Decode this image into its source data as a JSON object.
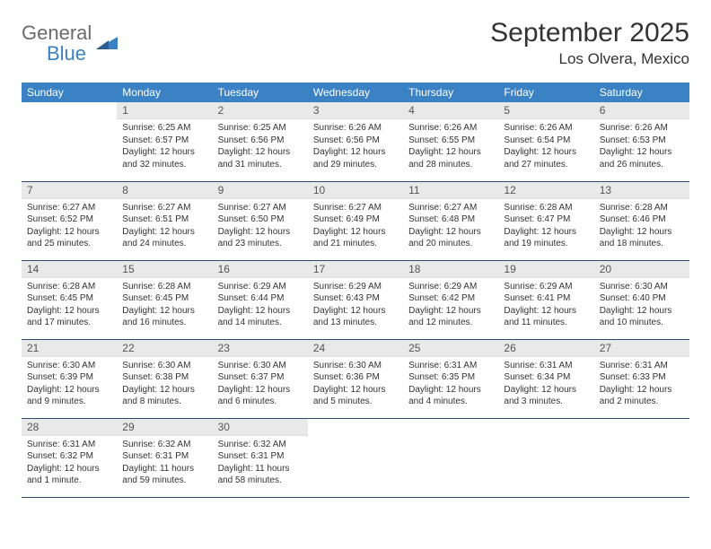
{
  "logo": {
    "text1": "General",
    "text2": "Blue"
  },
  "title": "September 2025",
  "location": "Los Olvera, Mexico",
  "colors": {
    "header_bg": "#3b82c4",
    "header_text": "#ffffff",
    "daynum_bg": "#e9e9e9",
    "row_border": "#2a4d6e",
    "logo_gray": "#6b6b6b",
    "logo_blue": "#3b82c4"
  },
  "weekdays": [
    "Sunday",
    "Monday",
    "Tuesday",
    "Wednesday",
    "Thursday",
    "Friday",
    "Saturday"
  ],
  "weeks": [
    [
      null,
      {
        "n": "1",
        "sr": "6:25 AM",
        "ss": "6:57 PM",
        "dl": "12 hours and 32 minutes."
      },
      {
        "n": "2",
        "sr": "6:25 AM",
        "ss": "6:56 PM",
        "dl": "12 hours and 31 minutes."
      },
      {
        "n": "3",
        "sr": "6:26 AM",
        "ss": "6:56 PM",
        "dl": "12 hours and 29 minutes."
      },
      {
        "n": "4",
        "sr": "6:26 AM",
        "ss": "6:55 PM",
        "dl": "12 hours and 28 minutes."
      },
      {
        "n": "5",
        "sr": "6:26 AM",
        "ss": "6:54 PM",
        "dl": "12 hours and 27 minutes."
      },
      {
        "n": "6",
        "sr": "6:26 AM",
        "ss": "6:53 PM",
        "dl": "12 hours and 26 minutes."
      }
    ],
    [
      {
        "n": "7",
        "sr": "6:27 AM",
        "ss": "6:52 PM",
        "dl": "12 hours and 25 minutes."
      },
      {
        "n": "8",
        "sr": "6:27 AM",
        "ss": "6:51 PM",
        "dl": "12 hours and 24 minutes."
      },
      {
        "n": "9",
        "sr": "6:27 AM",
        "ss": "6:50 PM",
        "dl": "12 hours and 23 minutes."
      },
      {
        "n": "10",
        "sr": "6:27 AM",
        "ss": "6:49 PM",
        "dl": "12 hours and 21 minutes."
      },
      {
        "n": "11",
        "sr": "6:27 AM",
        "ss": "6:48 PM",
        "dl": "12 hours and 20 minutes."
      },
      {
        "n": "12",
        "sr": "6:28 AM",
        "ss": "6:47 PM",
        "dl": "12 hours and 19 minutes."
      },
      {
        "n": "13",
        "sr": "6:28 AM",
        "ss": "6:46 PM",
        "dl": "12 hours and 18 minutes."
      }
    ],
    [
      {
        "n": "14",
        "sr": "6:28 AM",
        "ss": "6:45 PM",
        "dl": "12 hours and 17 minutes."
      },
      {
        "n": "15",
        "sr": "6:28 AM",
        "ss": "6:45 PM",
        "dl": "12 hours and 16 minutes."
      },
      {
        "n": "16",
        "sr": "6:29 AM",
        "ss": "6:44 PM",
        "dl": "12 hours and 14 minutes."
      },
      {
        "n": "17",
        "sr": "6:29 AM",
        "ss": "6:43 PM",
        "dl": "12 hours and 13 minutes."
      },
      {
        "n": "18",
        "sr": "6:29 AM",
        "ss": "6:42 PM",
        "dl": "12 hours and 12 minutes."
      },
      {
        "n": "19",
        "sr": "6:29 AM",
        "ss": "6:41 PM",
        "dl": "12 hours and 11 minutes."
      },
      {
        "n": "20",
        "sr": "6:30 AM",
        "ss": "6:40 PM",
        "dl": "12 hours and 10 minutes."
      }
    ],
    [
      {
        "n": "21",
        "sr": "6:30 AM",
        "ss": "6:39 PM",
        "dl": "12 hours and 9 minutes."
      },
      {
        "n": "22",
        "sr": "6:30 AM",
        "ss": "6:38 PM",
        "dl": "12 hours and 8 minutes."
      },
      {
        "n": "23",
        "sr": "6:30 AM",
        "ss": "6:37 PM",
        "dl": "12 hours and 6 minutes."
      },
      {
        "n": "24",
        "sr": "6:30 AM",
        "ss": "6:36 PM",
        "dl": "12 hours and 5 minutes."
      },
      {
        "n": "25",
        "sr": "6:31 AM",
        "ss": "6:35 PM",
        "dl": "12 hours and 4 minutes."
      },
      {
        "n": "26",
        "sr": "6:31 AM",
        "ss": "6:34 PM",
        "dl": "12 hours and 3 minutes."
      },
      {
        "n": "27",
        "sr": "6:31 AM",
        "ss": "6:33 PM",
        "dl": "12 hours and 2 minutes."
      }
    ],
    [
      {
        "n": "28",
        "sr": "6:31 AM",
        "ss": "6:32 PM",
        "dl": "12 hours and 1 minute."
      },
      {
        "n": "29",
        "sr": "6:32 AM",
        "ss": "6:31 PM",
        "dl": "11 hours and 59 minutes."
      },
      {
        "n": "30",
        "sr": "6:32 AM",
        "ss": "6:31 PM",
        "dl": "11 hours and 58 minutes."
      },
      null,
      null,
      null,
      null
    ]
  ],
  "labels": {
    "sunrise": "Sunrise: ",
    "sunset": "Sunset: ",
    "daylight": "Daylight: "
  }
}
